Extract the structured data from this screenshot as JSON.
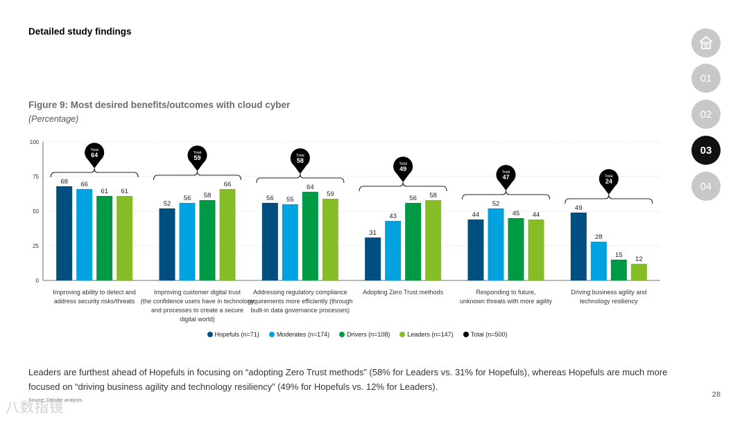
{
  "header": {
    "section_title": "Detailed study findings"
  },
  "figure": {
    "title": "Figure 9: Most desired benefits/outcomes with cloud cyber",
    "subtitle": "(Percentage)"
  },
  "nav": {
    "home_icon": "home-icon",
    "items": [
      {
        "label": "01",
        "active": false
      },
      {
        "label": "02",
        "active": false
      },
      {
        "label": "03",
        "active": true
      },
      {
        "label": "04",
        "active": false
      }
    ]
  },
  "chart_data": {
    "type": "bar",
    "ylim": [
      0,
      100
    ],
    "yticks": [
      0,
      25,
      50,
      75,
      100
    ],
    "categories": [
      [
        "Improving ability to detect and",
        "address security risks/threats"
      ],
      [
        "Improving customer digital trust",
        "(the confidence users have in technology",
        "and processes to create a secure",
        "digital world)"
      ],
      [
        "Addressing regulatory compliance",
        "requirements more efficiently (through",
        "built-in data governance processes)"
      ],
      [
        "Adopting Zero Trust methods"
      ],
      [
        "Responding to future,",
        "unknown threats with more agility"
      ],
      [
        "Driving business agility and",
        "technology resiliency"
      ]
    ],
    "series": [
      {
        "name": "Hopefuls (n=71)",
        "color": "#004f80",
        "values": [
          68,
          52,
          56,
          31,
          44,
          49
        ]
      },
      {
        "name": "Moderates (n=174)",
        "color": "#00a3e0",
        "values": [
          66,
          56,
          55,
          43,
          52,
          28
        ]
      },
      {
        "name": "Drivers (n=108)",
        "color": "#009a44",
        "values": [
          61,
          58,
          64,
          56,
          45,
          15
        ]
      },
      {
        "name": "Leaders (n=147)",
        "color": "#86bc25",
        "values": [
          61,
          66,
          59,
          58,
          44,
          12
        ]
      }
    ],
    "total": {
      "name": "Total  (n=500)",
      "color": "#000000",
      "label": "Total",
      "values": [
        64,
        59,
        58,
        49,
        47,
        24
      ]
    },
    "grid": true
  },
  "summary": "Leaders are furthest ahead of Hopefuls in focusing on “adopting Zero Trust methods” (58% for Leaders vs. 31% for Hopefuls), whereas Hopefuls are much more focused on “driving business agility and technology resiliency” (49% for Hopefuls vs. 12% for Leaders).",
  "source": "Source: Deloitte analysis.",
  "watermark": "八数指镜",
  "page_number": "28"
}
